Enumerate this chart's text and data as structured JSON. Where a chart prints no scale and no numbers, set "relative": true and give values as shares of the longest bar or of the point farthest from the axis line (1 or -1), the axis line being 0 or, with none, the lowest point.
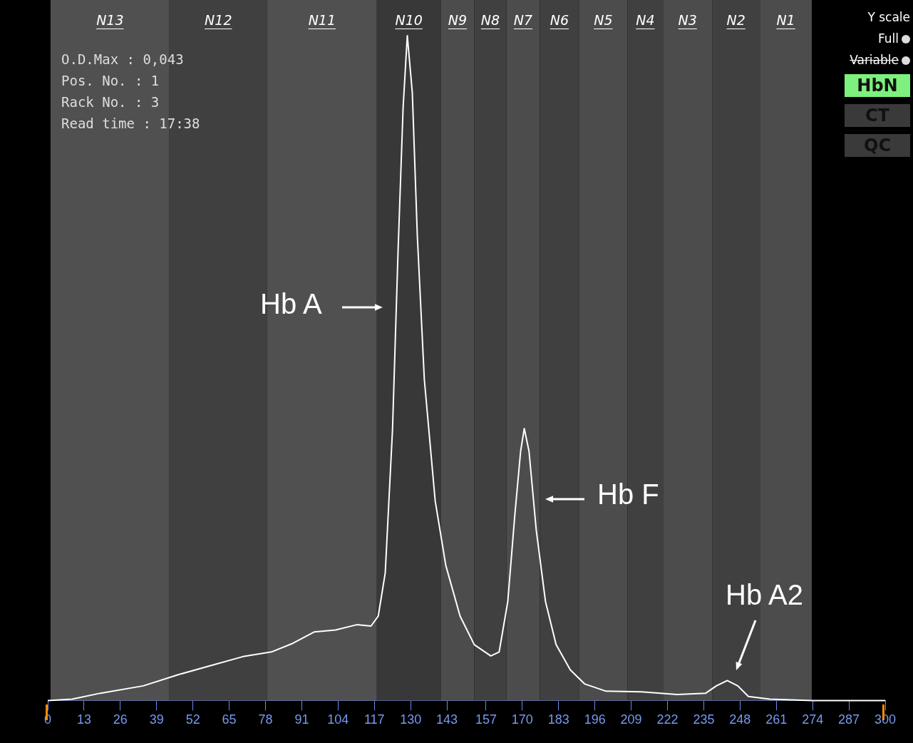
{
  "chart_data": {
    "type": "line",
    "relative": true,
    "color": "#ffffff",
    "grid": false,
    "legend": false,
    "marker": "none",
    "line_style": "solid",
    "x": [
      0,
      8.7,
      18.9,
      34.2,
      46.9,
      59.7,
      69.9,
      80.1,
      87.8,
      95.4,
      103.1,
      110.7,
      115.8,
      118.4,
      120.9,
      123.5,
      125.5,
      127.3,
      128.8,
      130.6,
      132.4,
      134.9,
      138.8,
      142.6,
      147.7,
      152.8,
      158.7,
      161.7,
      164.8,
      167.3,
      169.4,
      170.7,
      172.4,
      175.0,
      178.3,
      182.1,
      187.2,
      192.3,
      200,
      212.8,
      225.5,
      235.7,
      239.5,
      243.4,
      247.2,
      251.0,
      258.7,
      274,
      300
    ],
    "values": [
      0,
      0.002,
      0.011,
      0.022,
      0.039,
      0.054,
      0.066,
      0.073,
      0.086,
      0.103,
      0.106,
      0.114,
      0.112,
      0.127,
      0.192,
      0.407,
      0.677,
      0.892,
      1.0,
      0.914,
      0.698,
      0.483,
      0.3,
      0.203,
      0.127,
      0.084,
      0.067,
      0.073,
      0.149,
      0.278,
      0.375,
      0.409,
      0.375,
      0.256,
      0.149,
      0.084,
      0.046,
      0.025,
      0.014,
      0.013,
      0.009,
      0.011,
      0.022,
      0.03,
      0.022,
      0.006,
      0.002,
      0,
      0
    ],
    "xlim": [
      0,
      300
    ],
    "xticks": [
      0,
      13,
      26,
      39,
      52,
      65,
      78,
      91,
      104,
      117,
      130,
      143,
      157,
      170,
      183,
      196,
      209,
      222,
      235,
      248,
      261,
      274,
      287,
      300
    ],
    "bands": [
      {
        "axis": "x",
        "from": 1,
        "to": 43.6,
        "label": "N13",
        "color": "#505050"
      },
      {
        "axis": "x",
        "from": 43.6,
        "to": 78.6,
        "label": "N12",
        "color": "#404040"
      },
      {
        "axis": "x",
        "from": 78.6,
        "to": 117.9,
        "label": "N11",
        "color": "#505050"
      },
      {
        "axis": "x",
        "from": 117.9,
        "to": 140.8,
        "label": "N10",
        "color": "#383838"
      },
      {
        "axis": "x",
        "from": 140.8,
        "to": 152.8,
        "label": "N9",
        "color": "#4c4c4c"
      },
      {
        "axis": "x",
        "from": 152.8,
        "to": 164.3,
        "label": "N8",
        "color": "#404040"
      },
      {
        "axis": "x",
        "from": 164.3,
        "to": 176.3,
        "label": "N7",
        "color": "#4c4c4c"
      },
      {
        "axis": "x",
        "from": 176.3,
        "to": 190.3,
        "label": "N6",
        "color": "#404040"
      },
      {
        "axis": "x",
        "from": 190.3,
        "to": 207.7,
        "label": "N5",
        "color": "#4c4c4c"
      },
      {
        "axis": "x",
        "from": 207.7,
        "to": 220.4,
        "label": "N4",
        "color": "#404040"
      },
      {
        "axis": "x",
        "from": 220.4,
        "to": 238,
        "label": "N3",
        "color": "#4c4c4c"
      },
      {
        "axis": "x",
        "from": 238,
        "to": 255.1,
        "label": "N2",
        "color": "#404040"
      },
      {
        "axis": "x",
        "from": 255.1,
        "to": 273.7,
        "label": "N1",
        "color": "#4c4c4c"
      }
    ],
    "annotations": [
      "O.D.Max : 0,043",
      "Pos. No.   : 1",
      "Rack No. : 3",
      "Read time : 17:38",
      "Hb A",
      "Hb F",
      "Hb A2",
      "Y scale",
      "Full",
      "Variable",
      "HbN",
      "CT",
      "QC"
    ]
  }
}
